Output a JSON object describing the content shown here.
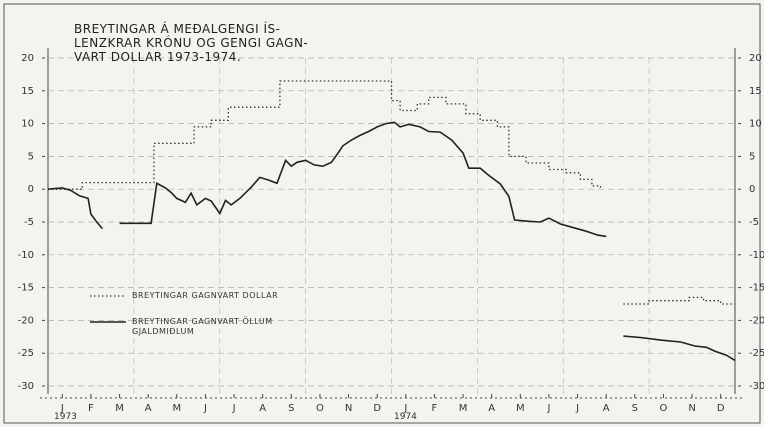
{
  "chart_data": {
    "type": "line",
    "title_lines": [
      "BREYTINGAR Á MEÐALGENGI ÍS-",
      "LENZKRAR KRÓNU OG GENGI GAGN-",
      "VART DOLLAR 1973-1974."
    ],
    "annotations": [
      "1973",
      "1974"
    ],
    "xlim": [
      0,
      24
    ],
    "xticks": [
      {
        "value": 0.5,
        "label": "J"
      },
      {
        "value": 1.5,
        "label": "F"
      },
      {
        "value": 2.5,
        "label": "M"
      },
      {
        "value": 3.5,
        "label": "A"
      },
      {
        "value": 4.5,
        "label": "M"
      },
      {
        "value": 5.5,
        "label": "J"
      },
      {
        "value": 6.5,
        "label": "J"
      },
      {
        "value": 7.5,
        "label": "A"
      },
      {
        "value": 8.5,
        "label": "S"
      },
      {
        "value": 9.5,
        "label": "O"
      },
      {
        "value": 10.5,
        "label": "N"
      },
      {
        "value": 11.5,
        "label": "D"
      },
      {
        "value": 12.5,
        "label": "J"
      },
      {
        "value": 13.5,
        "label": "F"
      },
      {
        "value": 14.5,
        "label": "M"
      },
      {
        "value": 15.5,
        "label": "A"
      },
      {
        "value": 16.5,
        "label": "M"
      },
      {
        "value": 17.5,
        "label": "J"
      },
      {
        "value": 18.5,
        "label": "J"
      },
      {
        "value": 19.5,
        "label": "A"
      },
      {
        "value": 20.5,
        "label": "S"
      },
      {
        "value": 21.5,
        "label": "O"
      },
      {
        "value": 22.5,
        "label": "N"
      },
      {
        "value": 23.5,
        "label": "D"
      }
    ],
    "ylim": [
      -30,
      20
    ],
    "yticks": [
      20,
      15,
      10,
      5,
      0,
      -5,
      -10,
      -15,
      -20,
      -25,
      -30
    ],
    "grid": true,
    "series": [
      {
        "name": "BREYTINGAR GAGNVART DOLLAR",
        "color": "#333333",
        "style": "dotted",
        "x": [
          0,
          1.2,
          1.2,
          3.7,
          3.7,
          5.1,
          5.1,
          5.7,
          5.7,
          6.3,
          6.3,
          8.1,
          8.1,
          12.0,
          12.0,
          12.3,
          12.3,
          12.9,
          12.9,
          13.3,
          13.3,
          13.9,
          13.9,
          14.6,
          14.6,
          15.1,
          15.1,
          15.7,
          15.7,
          16.1,
          16.1,
          16.7,
          16.7,
          17.5,
          17.5,
          18.1,
          18.1,
          18.6,
          18.6,
          19.0,
          19.0,
          19.3,
          19.3,
          null,
          20.1,
          21.0,
          21.0,
          22.4,
          22.4,
          22.9,
          22.9,
          23.5,
          23.5,
          24.0
        ],
        "values": [
          0,
          0,
          1,
          1,
          7,
          7,
          9.5,
          9.5,
          10.5,
          10.5,
          12.5,
          12.5,
          16.5,
          16.5,
          13.5,
          13.5,
          12,
          12,
          13,
          13,
          14,
          14,
          13,
          13,
          11.5,
          11.5,
          10.5,
          10.5,
          9.5,
          9.5,
          5,
          5,
          4,
          4,
          3,
          3,
          2.5,
          2.5,
          1.5,
          1.5,
          0.5,
          0.5,
          0,
          null,
          -17.5,
          -17.5,
          -17,
          -17,
          -16.5,
          -16.5,
          -17,
          -17,
          -17.5,
          -17.5
        ]
      },
      {
        "name": "BREYTINGAR GAGNVART ÖLLUM GJALDMIÐLUM",
        "color": "#222222",
        "style": "solid",
        "x": [
          0,
          0.5,
          0.8,
          1.1,
          1.4,
          1.5,
          1.7,
          1.9,
          null,
          2.5,
          3.6,
          3.8,
          4.1,
          4.3,
          4.5,
          4.8,
          5.0,
          5.2,
          5.5,
          5.7,
          6.0,
          6.2,
          6.4,
          6.7,
          7.1,
          7.4,
          7.7,
          8.0,
          8.3,
          8.5,
          8.7,
          9.0,
          9.3,
          9.6,
          9.9,
          10.1,
          10.3,
          10.6,
          10.9,
          11.2,
          11.5,
          11.8,
          12.1,
          12.3,
          12.6,
          13.0,
          13.3,
          13.7,
          14.1,
          14.5,
          14.7,
          15.1,
          15.4,
          15.8,
          16.1,
          16.3,
          16.8,
          17.2,
          17.5,
          17.9,
          18.3,
          18.8,
          19.2,
          19.5,
          null,
          20.1,
          20.7,
          21.4,
          22.1,
          22.6,
          23.0,
          23.3,
          23.7,
          24.0
        ],
        "values": [
          0,
          0.2,
          -0.2,
          -1,
          -1.4,
          -3.8,
          -5,
          -6,
          null,
          -5.2,
          -5.2,
          0.9,
          0.2,
          -0.5,
          -1.4,
          -2,
          -0.6,
          -2.4,
          -1.4,
          -1.8,
          -3.7,
          -1.7,
          -2.4,
          -1.4,
          0.3,
          1.8,
          1.4,
          0.9,
          4.4,
          3.5,
          4.1,
          4.4,
          3.7,
          3.5,
          4.1,
          5.3,
          6.6,
          7.5,
          8.2,
          8.8,
          9.5,
          10,
          10.2,
          9.5,
          9.9,
          9.5,
          8.8,
          8.7,
          7.5,
          5.5,
          3.2,
          3.2,
          2.1,
          0.8,
          -1.1,
          -4.7,
          -4.9,
          -5,
          -4.4,
          -5.3,
          -5.8,
          -6.4,
          -7,
          -7.2,
          null,
          -22.4,
          -22.6,
          -23,
          -23.3,
          -23.9,
          -24.1,
          -24.7,
          -25.3,
          -26.1
        ]
      }
    ]
  }
}
